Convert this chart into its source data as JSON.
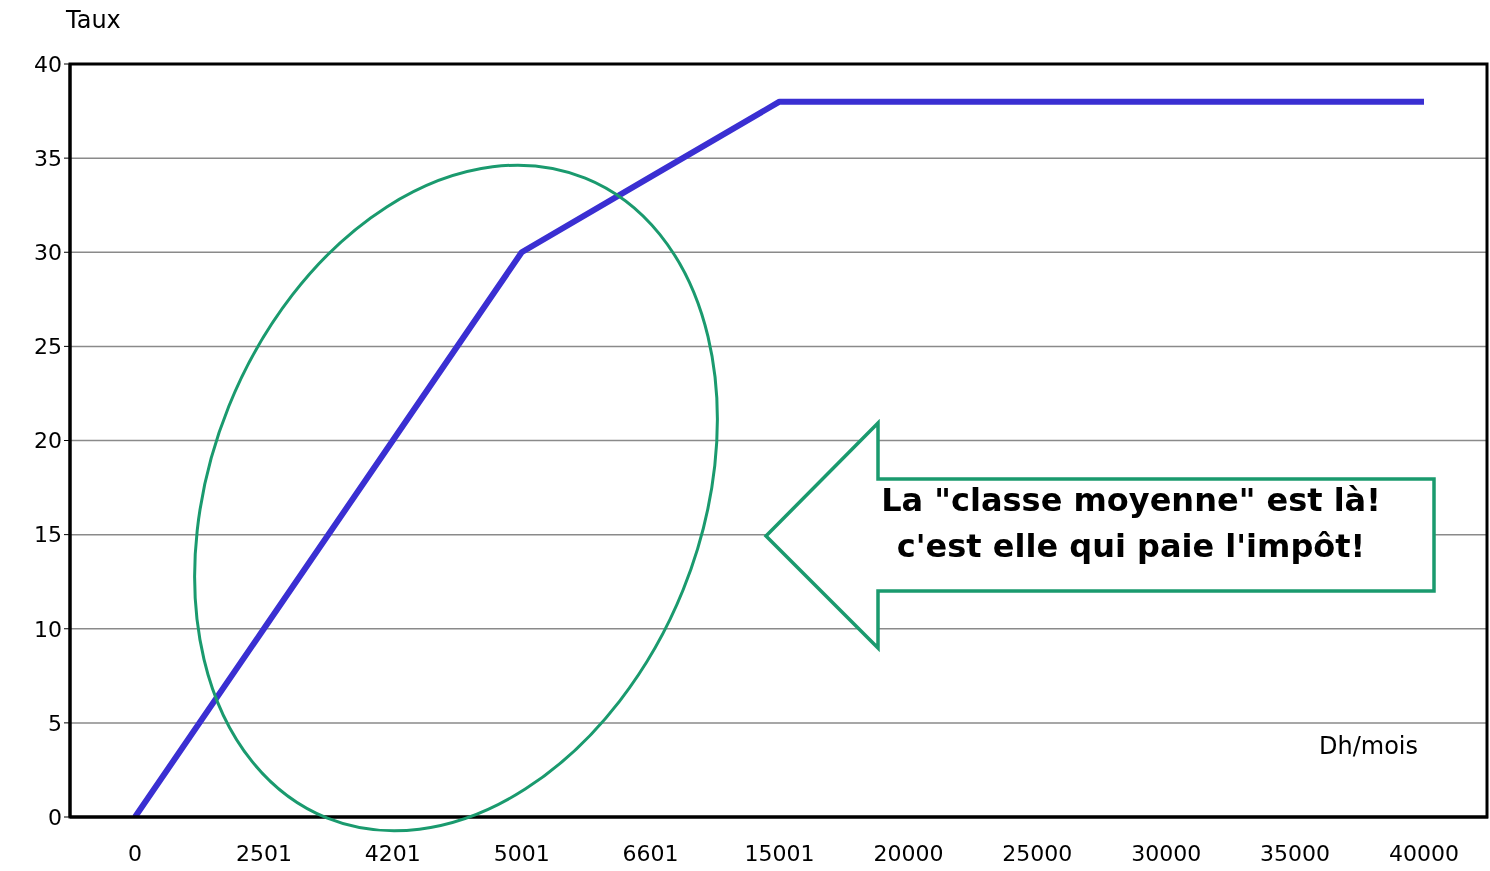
{
  "chart_data": {
    "type": "line",
    "ylabel": "Taux",
    "xlabel": "Dh/mois",
    "categories": [
      "0",
      "2501",
      "4201",
      "5001",
      "6601",
      "15001",
      "20000",
      "25000",
      "30000",
      "35000",
      "40000"
    ],
    "series": [
      {
        "color": "#3a2fd2",
        "values": [
          0,
          10,
          20,
          30,
          34,
          38,
          38,
          38,
          38,
          38,
          38
        ]
      }
    ],
    "ylim": [
      0,
      40
    ],
    "yticks": [
      0,
      5,
      10,
      15,
      20,
      25,
      30,
      35,
      40
    ],
    "grid": "y",
    "marker": "none",
    "line_style": "solid",
    "annotations": [
      "La \"classe moyenne\" est là!\nc'est elle qui paie l'impôt!"
    ]
  }
}
